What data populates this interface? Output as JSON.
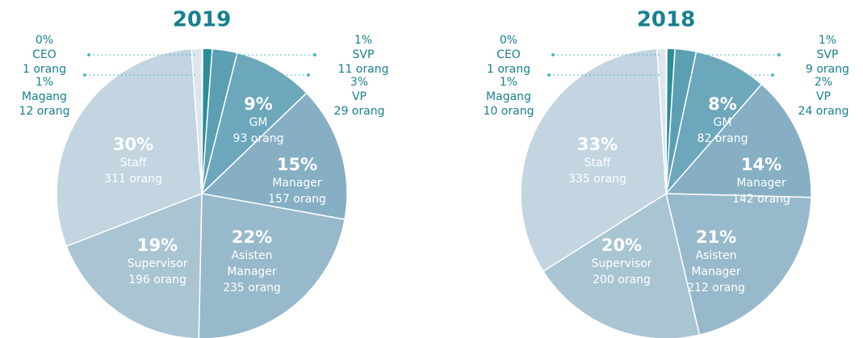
{
  "chart_data": [
    {
      "type": "pie",
      "title": "2019",
      "categories": [
        "CEO",
        "SVP",
        "VP",
        "GM",
        "Manager",
        "Asisten Manager",
        "Supervisor",
        "Staff",
        "Magang"
      ],
      "values": [
        1,
        11,
        29,
        93,
        157,
        235,
        196,
        311,
        12
      ],
      "value_labels": [
        "1 orang",
        "11 orang",
        "29 orang",
        "93 orang",
        "157 orang",
        "235 orang",
        "196 orang",
        "311 orang",
        "12 orang"
      ],
      "percent_labels": [
        "0%",
        "1%",
        "3%",
        "9%",
        "15%",
        "22%",
        "19%",
        "30%",
        "1%"
      ],
      "colors": [
        "#17808f",
        "#2b8d9c",
        "#5c9fb2",
        "#6ca7bb",
        "#86afc4",
        "#97b9cb",
        "#a9c5d4",
        "#c2d5e1",
        "#dde6ed"
      ]
    },
    {
      "type": "pie",
      "title": "2018",
      "categories": [
        "CEO",
        "SVP",
        "VP",
        "GM",
        "Manager",
        "Asisten Manager",
        "Supervisor",
        "Staff",
        "Magang"
      ],
      "values": [
        1,
        9,
        24,
        82,
        142,
        212,
        200,
        335,
        10
      ],
      "value_labels": [
        "1 orang",
        "9 orang",
        "24 orang",
        "82 orang",
        "142 orang",
        "212 orang",
        "200 orang",
        "335 orang",
        "10 orang"
      ],
      "percent_labels": [
        "0%",
        "1%",
        "2%",
        "8%",
        "14%",
        "21%",
        "20%",
        "33%",
        "1%"
      ],
      "colors": [
        "#17808f",
        "#2b8d9c",
        "#5c9fb2",
        "#6ca7bb",
        "#86afc4",
        "#97b9cb",
        "#a9c5d4",
        "#c2d5e1",
        "#dde6ed"
      ]
    }
  ]
}
